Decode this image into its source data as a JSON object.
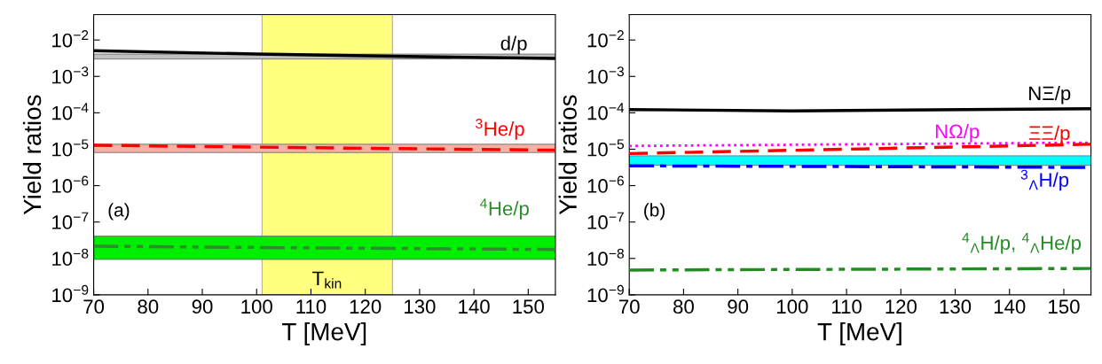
{
  "chart_data": [
    {
      "type": "line",
      "xlabel": "T [MeV]",
      "ylabel": "Yield ratios",
      "log": true,
      "grid": false,
      "legend": false,
      "xlim": [
        70,
        155
      ],
      "xticks": [
        70,
        80,
        90,
        100,
        110,
        120,
        130,
        140,
        150
      ],
      "ylim": [
        1e-09,
        0.05
      ],
      "yticks": [
        {
          "value": 1e-09,
          "label": "10$^{−9}$"
        },
        {
          "value": 1e-08,
          "label": "10$^{−8}$"
        },
        {
          "value": 1e-07,
          "label": "10$^{−7}$"
        },
        {
          "value": 1e-06,
          "label": "10$^{−6}$"
        },
        {
          "value": 1e-05,
          "label": "10$^{−5}$"
        },
        {
          "value": 0.0001,
          "label": "10$^{−4}$"
        },
        {
          "value": 0.001,
          "label": "10$^{−3}$"
        },
        {
          "value": 0.01,
          "label": "10$^{−2}$"
        }
      ],
      "bands": [
        {
          "axis": "x",
          "from": 101,
          "to": 125,
          "label": "T$_{kin}$",
          "color": "#ffff80"
        },
        {
          "axis": "y",
          "from": 0.003,
          "to": 0.0041,
          "label": null,
          "color": "#c0c0c0"
        },
        {
          "axis": "y",
          "from": 8.1e-06,
          "to": 1.37e-05,
          "label": null,
          "color": "#f6b0a4"
        },
        {
          "axis": "y",
          "from": 9.4e-09,
          "to": 4.1e-08,
          "label": null,
          "color": "#00ee00"
        }
      ],
      "annotations": [
        "(a)"
      ],
      "series": [
        {
          "name": "d/p",
          "color": "#000000",
          "line_style": "solid",
          "x": [
            70,
            100,
            125,
            155
          ],
          "values": [
            0.0051,
            0.0041,
            0.0036,
            0.0031
          ]
        },
        {
          "name": "$^{3}$He/p",
          "color": "#ff0000",
          "line_style": "dashed",
          "x": [
            70,
            110,
            155
          ],
          "values": [
            1.29e-05,
            1.1e-05,
            9.4e-06
          ]
        },
        {
          "name": "$^{4}$He/p",
          "color": "#2e8b2e",
          "line_style": "dashdotdot",
          "x": [
            70,
            110,
            155
          ],
          "values": [
            2.17e-08,
            1.95e-08,
            1.76e-08
          ]
        }
      ]
    },
    {
      "type": "line",
      "xlabel": "T [MeV]",
      "ylabel": "Yield ratios",
      "log": true,
      "grid": false,
      "legend": false,
      "xlim": [
        70,
        155
      ],
      "xticks": [
        70,
        80,
        90,
        100,
        110,
        120,
        130,
        140,
        150
      ],
      "ylim": [
        1e-09,
        0.05
      ],
      "yticks": [
        {
          "value": 1e-09,
          "label": "10$^{−9}$"
        },
        {
          "value": 1e-08,
          "label": "10$^{−8}$"
        },
        {
          "value": 1e-07,
          "label": "10$^{−7}$"
        },
        {
          "value": 1e-06,
          "label": "10$^{−6}$"
        },
        {
          "value": 1e-05,
          "label": "10$^{−5}$"
        },
        {
          "value": 0.0001,
          "label": "10$^{−4}$"
        },
        {
          "value": 0.001,
          "label": "10$^{−3}$"
        },
        {
          "value": 0.01,
          "label": "10$^{−2}$"
        }
      ],
      "bands": [
        {
          "axis": "y",
          "from": 3.6e-06,
          "to": 6.6e-06,
          "label": null,
          "color": "#00ffff"
        }
      ],
      "annotations": [
        "(b)"
      ],
      "series": [
        {
          "name": "NΞ/p",
          "color": "#000000",
          "line_style": "solid",
          "x": [
            70,
            100,
            155
          ],
          "values": [
            0.000123,
            0.000113,
            0.000129
          ]
        },
        {
          "name": "NΩ/p",
          "color": "#ff00ff",
          "line_style": "dotted",
          "x": [
            70,
            155
          ],
          "values": [
            1.23e-05,
            1.52e-05
          ]
        },
        {
          "name": "ΞΞ/p",
          "color": "#ff0000",
          "line_style": "dashed",
          "x": [
            70,
            110,
            155
          ],
          "values": [
            7.6e-06,
            1e-05,
            1.37e-05
          ]
        },
        {
          "name": "$^{3}$$_{Λ}$H/p",
          "color": "#0000ff",
          "line_style": "dashdot",
          "x": [
            70,
            155
          ],
          "values": [
            3.5e-06,
            3.16e-06
          ]
        },
        {
          "name": "$^{4}$$_{Λ}$H/p, $^{4}$$_{Λ}$He/p",
          "color": "#228b22",
          "line_style": "dashdotdot",
          "x": [
            70,
            155
          ],
          "values": [
            4.8e-09,
            5.3e-09
          ]
        }
      ]
    }
  ]
}
